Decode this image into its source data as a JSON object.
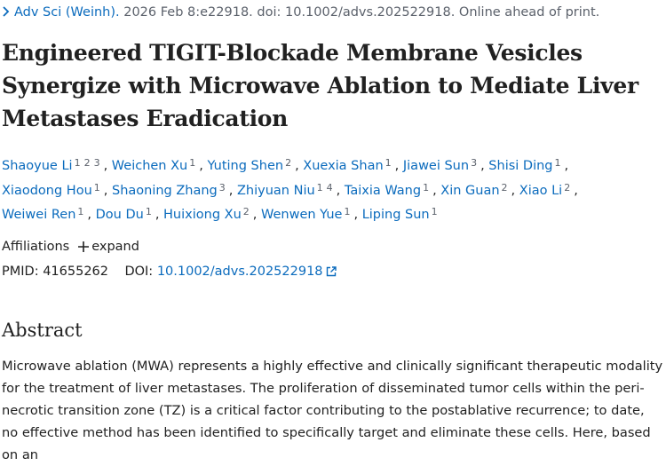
{
  "citation": {
    "journal": "Adv Sci (Weinh).",
    "details": "2026 Feb 8:e22918. doi: 10.1002/advs.202522918. Online ahead of print."
  },
  "title": "Engineered TIGIT-Blockade Membrane Vesicles Synergize with Microwave Ablation to Mediate Liver Metastases Eradication",
  "authors": [
    {
      "name": "Shaoyue Li",
      "affiliations": [
        1,
        2,
        3
      ],
      "separator": ","
    },
    {
      "name": "Weichen Xu",
      "affiliations": [
        1
      ],
      "separator": ","
    },
    {
      "name": "Yuting Shen",
      "affiliations": [
        2
      ],
      "separator": ","
    },
    {
      "name": "Xuexia Shan",
      "affiliations": [
        1
      ],
      "separator": ","
    },
    {
      "name": "Jiawei Sun",
      "affiliations": [
        3
      ],
      "separator": ","
    },
    {
      "name": "Shisi Ding",
      "affiliations": [
        1
      ],
      "separator": ","
    },
    {
      "name": "Xiaodong Hou",
      "affiliations": [
        1
      ],
      "separator": ","
    },
    {
      "name": "Shaoning Zhang",
      "affiliations": [
        3
      ],
      "separator": ","
    },
    {
      "name": "Zhiyuan Niu",
      "affiliations": [
        1,
        4
      ],
      "separator": ","
    },
    {
      "name": "Taixia Wang",
      "affiliations": [
        1
      ],
      "separator": ","
    },
    {
      "name": "Xin Guan",
      "affiliations": [
        2
      ],
      "separator": ","
    },
    {
      "name": "Xiao Li",
      "affiliations": [
        2
      ],
      "separator": ","
    },
    {
      "name": "Weiwei Ren",
      "affiliations": [
        1
      ],
      "separator": ","
    },
    {
      "name": "Dou Du",
      "affiliations": [
        1
      ],
      "separator": ","
    },
    {
      "name": "Huixiong Xu",
      "affiliations": [
        2
      ],
      "separator": ","
    },
    {
      "name": "Wenwen Yue",
      "affiliations": [
        1
      ],
      "separator": ","
    },
    {
      "name": "Liping Sun",
      "affiliations": [
        1
      ]
    }
  ],
  "affiliations": {
    "label": "Affiliations",
    "toggle": "expand"
  },
  "identifiers": {
    "pmid_label": "PMID:",
    "pmid": "41655262",
    "doi_label": "DOI:",
    "doi": "10.1002/advs.202522918"
  },
  "abstract": {
    "heading": "Abstract",
    "text": "Microwave ablation (MWA) represents a highly effective and clinically significant therapeutic modality for the treatment of liver metastases. The proliferation of disseminated tumor cells within the peri-necrotic transition zone (TZ) is a critical factor contributing to the postablative recurrence; to date, no effective method has been identified to specifically target and eliminate these cells. Here, based on an"
  }
}
